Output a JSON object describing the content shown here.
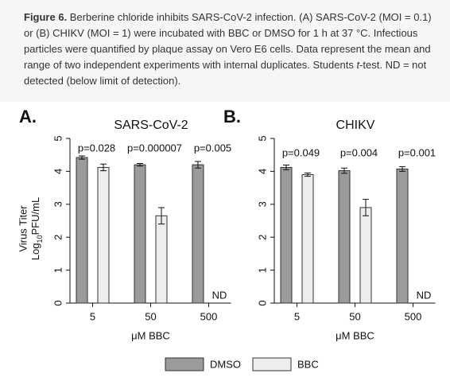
{
  "caption": {
    "label": "Figure 6.",
    "parts": [
      " Berberine chloride inhibits SARS-CoV-2 infection. (A) SARS-CoV-2 (MOI = 0.1) or (B) CHIKV (MOI = 1) were incubated with BBC or DMSO for 1 h at 37 °C. Infectious particles were quantified by plaque assay on Vero E6 cells. Data represent the mean and range of two independent experiments with internal duplicates. Students ",
      "t",
      "-test. ND = not detected (below limit of detection)."
    ]
  },
  "chart_data": [
    {
      "type": "bar",
      "panel": "A.",
      "title": "SARS-CoV-2",
      "ylabel": "Virus Titer",
      "ylabel_unit": [
        "Log",
        "10",
        "PFU/mL"
      ],
      "xlabel": "μM BBC",
      "categories": [
        "5",
        "50",
        "500"
      ],
      "series": [
        {
          "name": "DMSO",
          "color": "#9b9b9b",
          "values": [
            4.42,
            4.2,
            4.2
          ],
          "errors": [
            0.05,
            0.04,
            0.1
          ]
        },
        {
          "name": "BBC",
          "color": "#ededed",
          "values": [
            4.12,
            2.65,
            null
          ],
          "errors": [
            0.1,
            0.25,
            null
          ]
        }
      ],
      "annotations": [
        "p=0.028",
        "p=0.000007",
        "p=0.005"
      ],
      "missing_label": "ND",
      "ylim": [
        0,
        5
      ],
      "yticks": [
        0,
        1,
        2,
        3,
        4,
        5
      ]
    },
    {
      "type": "bar",
      "panel": "B.",
      "title": "CHIKV",
      "xlabel": "μM BBC",
      "categories": [
        "5",
        "50",
        "500"
      ],
      "series": [
        {
          "color": "#9b9b9b",
          "values": [
            4.12,
            4.02,
            4.07
          ],
          "errors": [
            0.07,
            0.08,
            0.07
          ]
        },
        {
          "color": "#ededed",
          "values": [
            3.9,
            2.9,
            null
          ],
          "errors": [
            0.05,
            0.25,
            null
          ]
        }
      ],
      "annotations": [
        "p=0.049",
        "p=0.004",
        "p=0.001"
      ],
      "missing_label": "ND",
      "ylim": [
        0,
        5
      ],
      "yticks": [
        0,
        1,
        2,
        3,
        4,
        5
      ]
    }
  ]
}
